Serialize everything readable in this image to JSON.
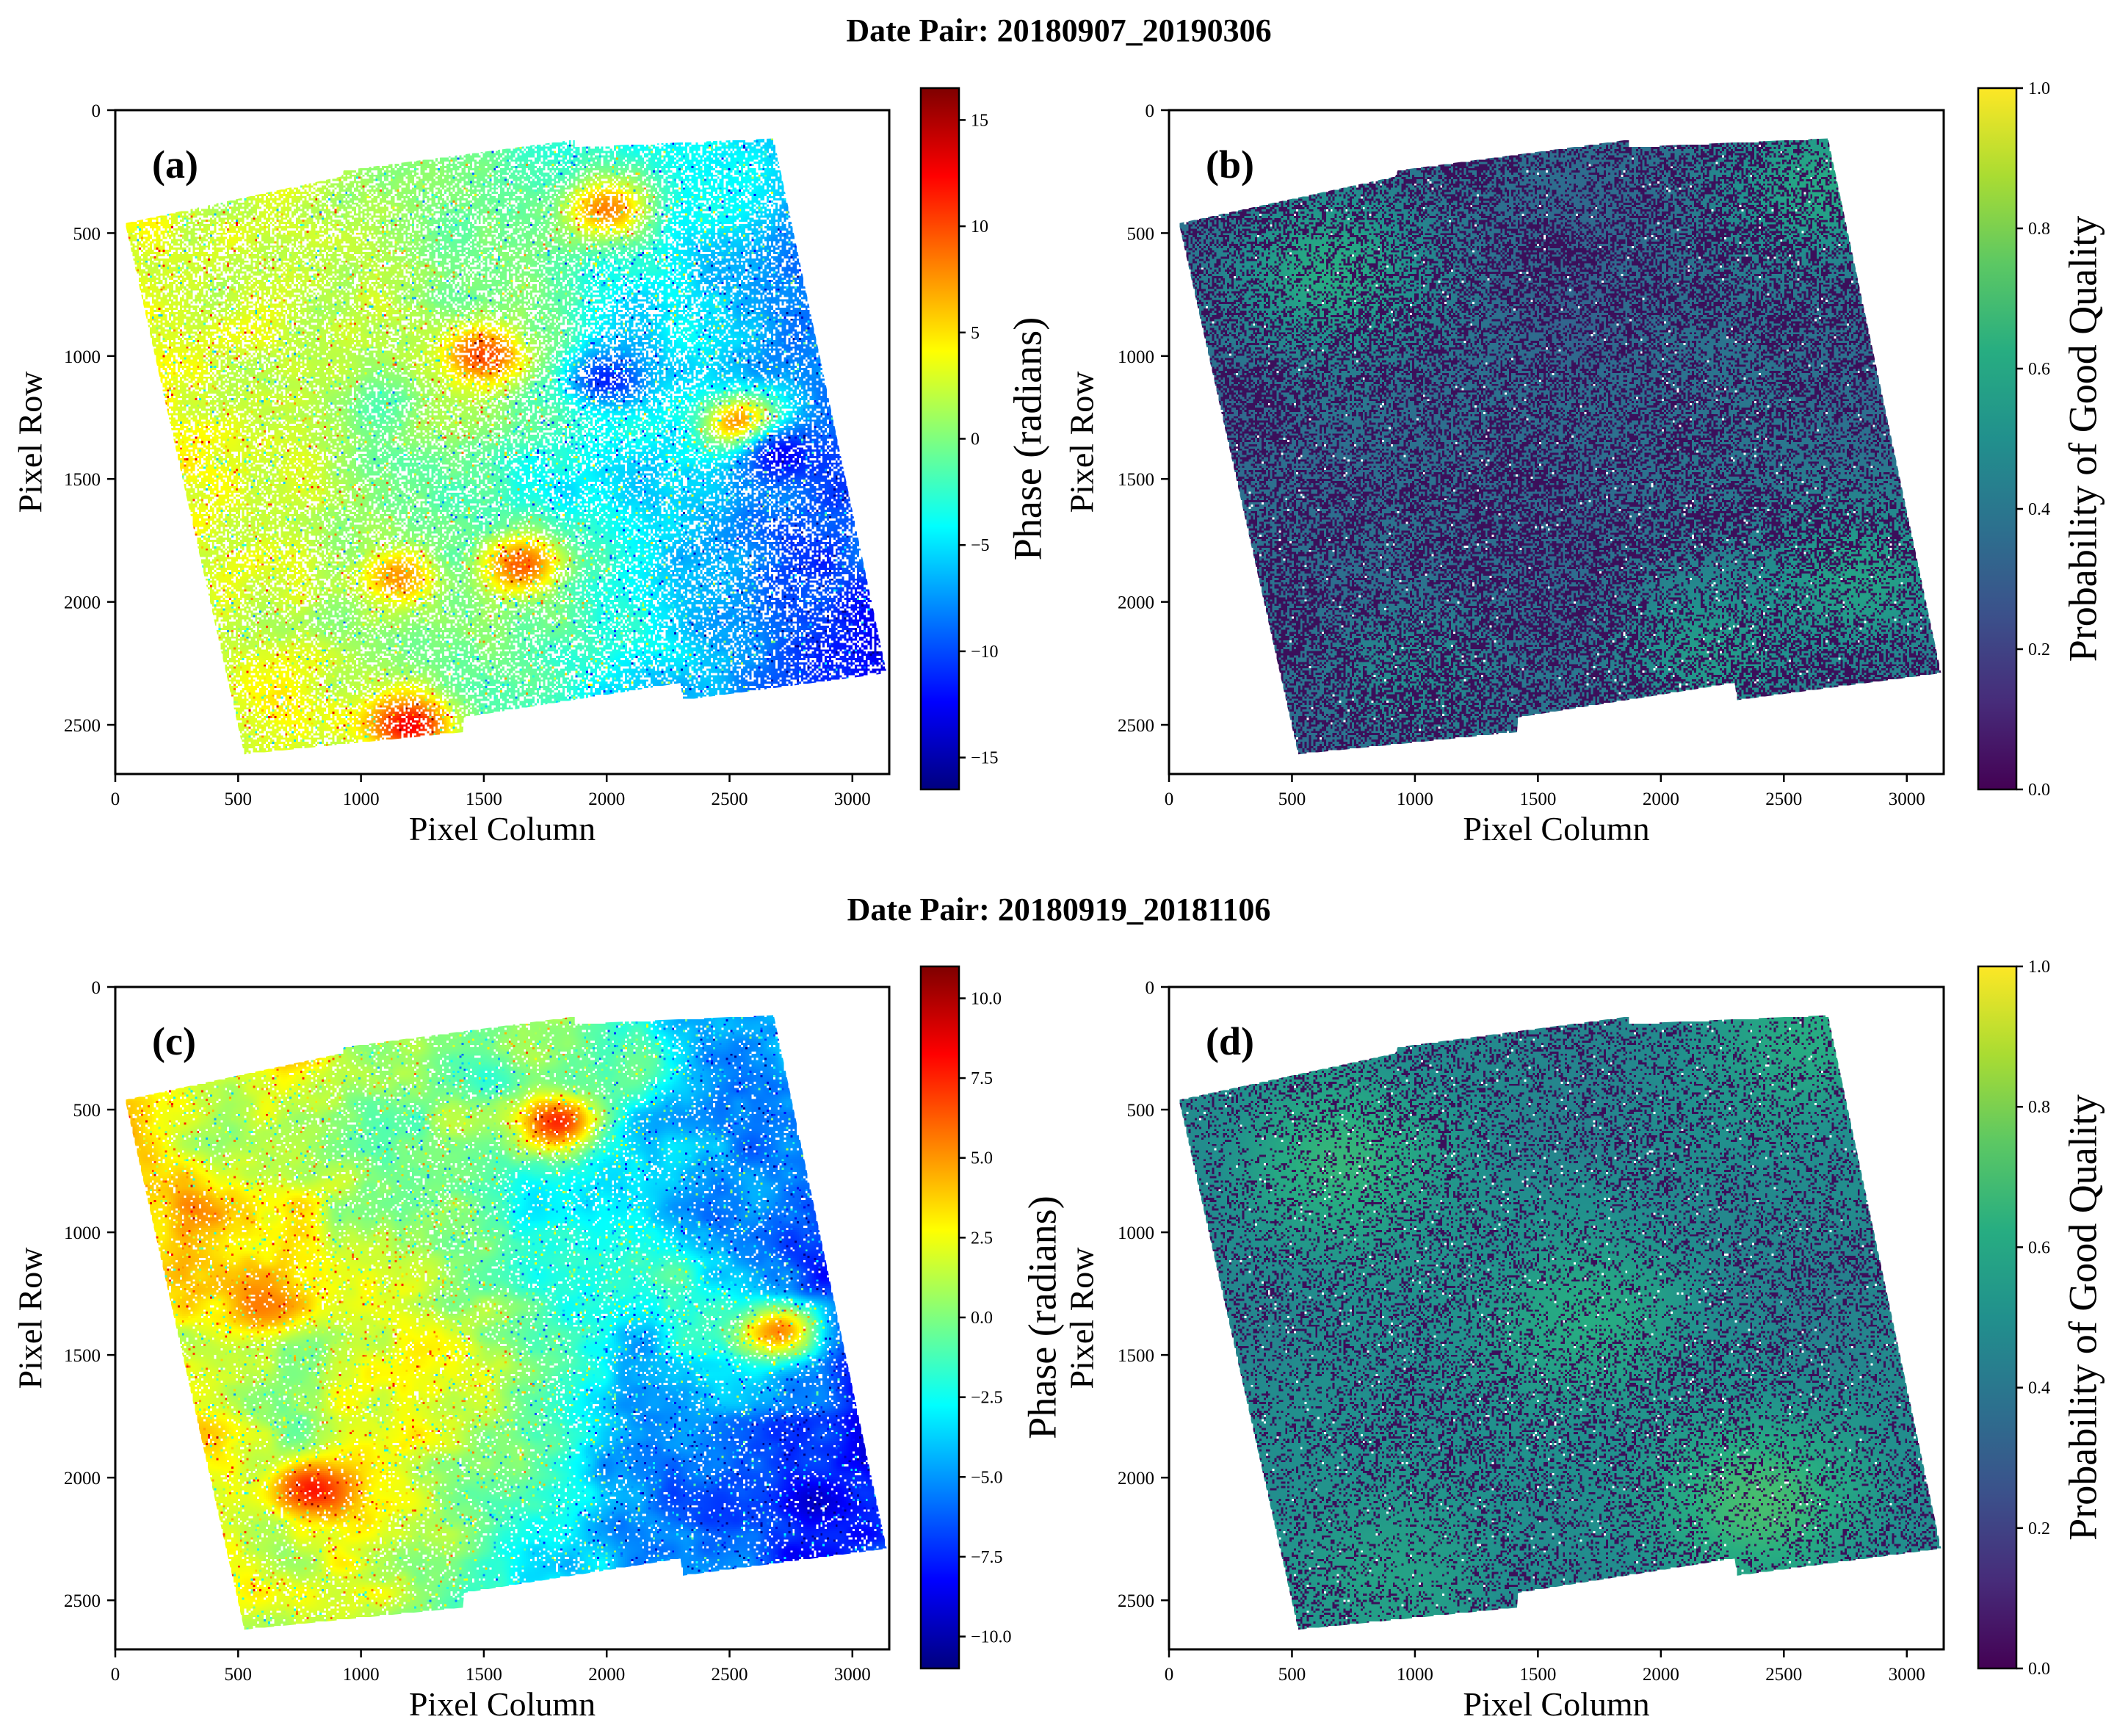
{
  "figure": {
    "row_titles": [
      "Date Pair: 20180907_20190306",
      "Date Pair: 20180919_20181106"
    ]
  },
  "colors": {
    "jet": [
      "#00007f",
      "#0000ff",
      "#007fff",
      "#00ffff",
      "#7fff7f",
      "#ffff00",
      "#ff7f00",
      "#ff0000",
      "#7f0000"
    ],
    "viridis": [
      "#440154",
      "#472c7a",
      "#3b518b",
      "#2c718e",
      "#21908d",
      "#27ad81",
      "#5cc863",
      "#aadc32",
      "#fde725"
    ],
    "lowq_speckle": "#3b0f5a",
    "background": "#ffffff"
  },
  "chart_data": [
    {
      "type": "heatmap",
      "panel_label": "(a)",
      "xlabel": "Pixel Column",
      "ylabel": "Pixel Row",
      "xlim": [
        0,
        3150
      ],
      "ylim": [
        2700,
        0
      ],
      "xticks": [
        0,
        500,
        1000,
        1500,
        2000,
        2500,
        3000
      ],
      "yticks": [
        0,
        500,
        1000,
        1500,
        2000,
        2500
      ],
      "colormap": "jet",
      "colorbar_label": "Phase (radians)",
      "colorbar_range": [
        -16.5,
        16.5
      ],
      "colorbar_ticks": [
        -15,
        -10,
        -5,
        0,
        5,
        10,
        15
      ],
      "colorbar_tick_labels": [
        "−15",
        "−10",
        "−5",
        "0",
        "5",
        "10",
        "15"
      ],
      "footprint": [
        [
          40,
          460
        ],
        [
          920,
          270
        ],
        [
          930,
          245
        ],
        [
          1870,
          120
        ],
        [
          1870,
          150
        ],
        [
          2680,
          115
        ],
        [
          3140,
          2290
        ],
        [
          2310,
          2400
        ],
        [
          2300,
          2330
        ],
        [
          1420,
          2470
        ],
        [
          1415,
          2530
        ],
        [
          525,
          2620
        ]
      ],
      "field_trend": {
        "west_value": 4,
        "east_value": -9,
        "south_east_value": -12
      },
      "noise": {
        "white_fraction": 0.22,
        "speckle_spread": 5
      },
      "hotspots": [
        {
          "x": 2000,
          "y": 400,
          "value": 10
        },
        {
          "x": 1500,
          "y": 1000,
          "value": 12
        },
        {
          "x": 2550,
          "y": 1280,
          "value": 13
        },
        {
          "x": 2700,
          "y": 1400,
          "value": -14
        },
        {
          "x": 1200,
          "y": 2500,
          "value": 15
        },
        {
          "x": 1150,
          "y": 1900,
          "value": 9
        },
        {
          "x": 1650,
          "y": 1850,
          "value": 11
        },
        {
          "x": 2000,
          "y": 1100,
          "value": -13
        }
      ]
    },
    {
      "type": "heatmap",
      "panel_label": "(b)",
      "xlabel": "Pixel Column",
      "ylabel": "Pixel Row",
      "xlim": [
        0,
        3150
      ],
      "ylim": [
        2700,
        0
      ],
      "xticks": [
        0,
        500,
        1000,
        1500,
        2000,
        2500,
        3000
      ],
      "yticks": [
        0,
        500,
        1000,
        1500,
        2000,
        2500
      ],
      "colormap": "viridis",
      "colorbar_label": "Probability of Good Quality",
      "colorbar_range": [
        0.0,
        1.0
      ],
      "colorbar_ticks": [
        0.0,
        0.2,
        0.4,
        0.6,
        0.8,
        1.0
      ],
      "colorbar_tick_labels": [
        "0.0",
        "0.2",
        "0.4",
        "0.6",
        "0.8",
        "1.0"
      ],
      "footprint": [
        [
          40,
          460
        ],
        [
          920,
          270
        ],
        [
          930,
          245
        ],
        [
          1870,
          120
        ],
        [
          1870,
          150
        ],
        [
          2680,
          115
        ],
        [
          3140,
          2290
        ],
        [
          2310,
          2400
        ],
        [
          2300,
          2330
        ],
        [
          1420,
          2470
        ],
        [
          1415,
          2530
        ],
        [
          525,
          2620
        ]
      ],
      "base_value": 0.36,
      "green_patches": [
        {
          "x": 650,
          "y": 650,
          "value": 0.62
        },
        {
          "x": 2650,
          "y": 300,
          "value": 0.6
        },
        {
          "x": 2800,
          "y": 1900,
          "value": 0.58
        },
        {
          "x": 2200,
          "y": 2200,
          "value": 0.55
        },
        {
          "x": 1000,
          "y": 2300,
          "value": 0.48
        }
      ],
      "low_quality_fraction": 0.5
    },
    {
      "type": "heatmap",
      "panel_label": "(c)",
      "xlabel": "Pixel Column",
      "ylabel": "Pixel Row",
      "xlim": [
        0,
        3150
      ],
      "ylim": [
        2700,
        0
      ],
      "xticks": [
        0,
        500,
        1000,
        1500,
        2000,
        2500,
        3000
      ],
      "yticks": [
        0,
        500,
        1000,
        1500,
        2000,
        2500
      ],
      "colormap": "jet",
      "colorbar_label": "Phase (radians)",
      "colorbar_range": [
        -11,
        11
      ],
      "colorbar_ticks": [
        -10.0,
        -7.5,
        -5.0,
        -2.5,
        0.0,
        2.5,
        5.0,
        7.5,
        10.0
      ],
      "colorbar_tick_labels": [
        "−10.0",
        "−7.5",
        "−5.0",
        "−2.5",
        "0.0",
        "2.5",
        "5.0",
        "7.5",
        "10.0"
      ],
      "footprint": [
        [
          40,
          460
        ],
        [
          920,
          270
        ],
        [
          930,
          245
        ],
        [
          1870,
          120
        ],
        [
          1870,
          150
        ],
        [
          2680,
          115
        ],
        [
          3140,
          2290
        ],
        [
          2310,
          2400
        ],
        [
          2300,
          2330
        ],
        [
          1420,
          2470
        ],
        [
          1415,
          2530
        ],
        [
          525,
          2620
        ]
      ],
      "field_trend": {
        "west_value": 3,
        "east_value": -6,
        "south_east_value": -9
      },
      "noise": {
        "white_fraction": 0.07,
        "speckle_spread": 3
      },
      "hotspots": [
        {
          "x": 1800,
          "y": 550,
          "value": 9
        },
        {
          "x": 800,
          "y": 2050,
          "value": 9
        },
        {
          "x": 600,
          "y": 1300,
          "value": 6
        },
        {
          "x": 2700,
          "y": 1400,
          "value": 7
        },
        {
          "x": 2850,
          "y": 2100,
          "value": -10
        }
      ]
    },
    {
      "type": "heatmap",
      "panel_label": "(d)",
      "xlabel": "Pixel Column",
      "ylabel": "Pixel Row",
      "xlim": [
        0,
        3150
      ],
      "ylim": [
        2700,
        0
      ],
      "xticks": [
        0,
        500,
        1000,
        1500,
        2000,
        2500,
        3000
      ],
      "yticks": [
        0,
        500,
        1000,
        1500,
        2000,
        2500
      ],
      "colormap": "viridis",
      "colorbar_label": "Probability of Good Quality",
      "colorbar_range": [
        0.0,
        1.0
      ],
      "colorbar_ticks": [
        0.0,
        0.2,
        0.4,
        0.6,
        0.8,
        1.0
      ],
      "colorbar_tick_labels": [
        "0.0",
        "0.2",
        "0.4",
        "0.6",
        "0.8",
        "1.0"
      ],
      "footprint": [
        [
          40,
          460
        ],
        [
          920,
          270
        ],
        [
          930,
          245
        ],
        [
          1870,
          120
        ],
        [
          1870,
          150
        ],
        [
          2680,
          115
        ],
        [
          3140,
          2290
        ],
        [
          2310,
          2400
        ],
        [
          2300,
          2330
        ],
        [
          1420,
          2470
        ],
        [
          1415,
          2530
        ],
        [
          525,
          2620
        ]
      ],
      "base_value": 0.47,
      "green_patches": [
        {
          "x": 700,
          "y": 700,
          "value": 0.66
        },
        {
          "x": 2600,
          "y": 200,
          "value": 0.62
        },
        {
          "x": 1700,
          "y": 1350,
          "value": 0.62
        },
        {
          "x": 2400,
          "y": 2100,
          "value": 0.7
        },
        {
          "x": 900,
          "y": 2400,
          "value": 0.58
        }
      ],
      "low_quality_fraction": 0.28
    }
  ]
}
